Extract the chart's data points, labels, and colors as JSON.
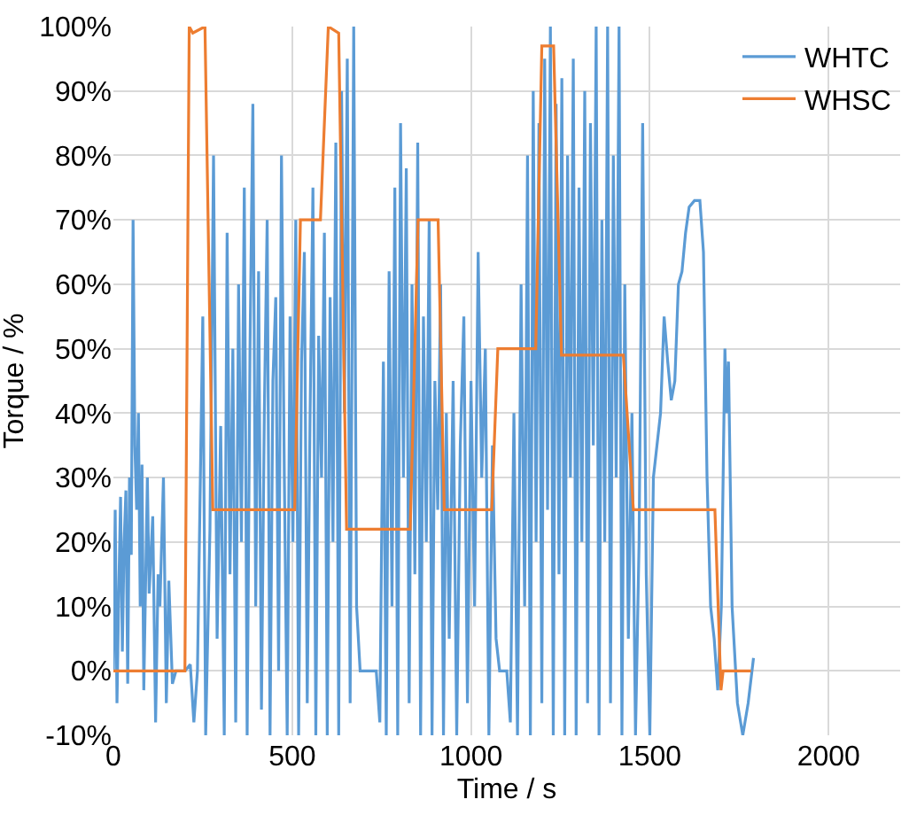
{
  "chart_data": {
    "type": "line",
    "xlabel": "Time / s",
    "ylabel": "Torque / %",
    "xlim": [
      0,
      2200
    ],
    "xticks": [
      0,
      500,
      1000,
      1500,
      2000
    ],
    "ylim": [
      -10,
      100
    ],
    "yticks": [
      {
        "value": -10,
        "label": "-10%"
      },
      {
        "value": 0,
        "label": "0%"
      },
      {
        "value": 10,
        "label": "10%"
      },
      {
        "value": 20,
        "label": "20%"
      },
      {
        "value": 30,
        "label": "30%"
      },
      {
        "value": 40,
        "label": "40%"
      },
      {
        "value": 50,
        "label": "50%"
      },
      {
        "value": 60,
        "label": "60%"
      },
      {
        "value": 70,
        "label": "70%"
      },
      {
        "value": 80,
        "label": "80%"
      },
      {
        "value": 90,
        "label": "90%"
      },
      {
        "value": 100,
        "label": "100%"
      }
    ],
    "grid": true,
    "legend": "top right",
    "marker": "none",
    "line_style": "solid",
    "series": [
      {
        "name": "WHTC",
        "color": "#5b9bd5",
        "x": [
          0,
          5,
          10,
          15,
          20,
          25,
          30,
          35,
          40,
          45,
          50,
          55,
          60,
          65,
          70,
          75,
          80,
          85,
          95,
          100,
          110,
          118,
          125,
          130,
          140,
          148,
          155,
          165,
          175,
          200,
          215,
          225,
          235,
          250,
          258,
          270,
          280,
          290,
          300,
          310,
          318,
          326,
          334,
          342,
          350,
          358,
          366,
          374,
          382,
          390,
          398,
          406,
          414,
          422,
          430,
          438,
          446,
          454,
          462,
          470,
          478,
          486,
          494,
          502,
          510,
          518,
          526,
          534,
          542,
          550,
          558,
          566,
          574,
          582,
          590,
          598,
          606,
          614,
          622,
          630,
          638,
          646,
          654,
          662,
          672,
          680,
          690,
          720,
          735,
          745,
          755,
          763,
          771,
          779,
          787,
          795,
          803,
          811,
          819,
          827,
          835,
          843,
          851,
          859,
          867,
          875,
          883,
          891,
          899,
          907,
          915,
          923,
          931,
          939,
          950,
          960,
          970,
          980,
          990,
          1000,
          1010,
          1020,
          1030,
          1040,
          1050,
          1060,
          1070,
          1080,
          1100,
          1110,
          1120,
          1130,
          1140,
          1150,
          1158,
          1166,
          1174,
          1182,
          1190,
          1198,
          1206,
          1214,
          1222,
          1230,
          1238,
          1246,
          1254,
          1262,
          1270,
          1278,
          1286,
          1294,
          1302,
          1310,
          1318,
          1326,
          1334,
          1342,
          1350,
          1358,
          1366,
          1374,
          1382,
          1390,
          1398,
          1406,
          1414,
          1422,
          1430,
          1440,
          1450,
          1460,
          1470,
          1480,
          1490,
          1500,
          1510,
          1520,
          1530,
          1540,
          1550,
          1560,
          1570,
          1580,
          1590,
          1600,
          1610,
          1625,
          1640,
          1650,
          1660,
          1670,
          1680,
          1690,
          1700,
          1710,
          1715,
          1720,
          1730,
          1745,
          1760,
          1775,
          1790
        ],
        "values": [
          0,
          25,
          -5,
          12,
          27,
          3,
          20,
          28,
          -2,
          30,
          18,
          70,
          35,
          25,
          40,
          10,
          32,
          -3,
          30,
          12,
          24,
          -8,
          15,
          10,
          30,
          -5,
          14,
          -2,
          0,
          0,
          1,
          -8,
          0,
          55,
          -10,
          22,
          80,
          5,
          38,
          -10,
          68,
          15,
          50,
          -8,
          60,
          20,
          75,
          -10,
          50,
          88,
          10,
          62,
          -6,
          40,
          70,
          -10,
          45,
          58,
          0,
          80,
          30,
          -10,
          55,
          20,
          70,
          -10,
          48,
          65,
          -5,
          40,
          75,
          -10,
          52,
          30,
          68,
          -10,
          58,
          20,
          82,
          -10,
          90,
          40,
          95,
          -5,
          100,
          10,
          0,
          0,
          0,
          -8,
          48,
          -10,
          62,
          10,
          75,
          -10,
          85,
          30,
          78,
          -5,
          60,
          15,
          82,
          -10,
          55,
          20,
          70,
          -10,
          45,
          25,
          60,
          -10,
          40,
          5,
          45,
          -10,
          35,
          55,
          -5,
          45,
          10,
          65,
          30,
          50,
          -10,
          35,
          5,
          0,
          0,
          -8,
          40,
          -10,
          60,
          10,
          80,
          -10,
          90,
          20,
          85,
          -5,
          95,
          25,
          100,
          -10,
          88,
          15,
          92,
          -10,
          80,
          30,
          95,
          -10,
          75,
          20,
          90,
          -5,
          85,
          35,
          100,
          -10,
          70,
          20,
          100,
          -5,
          80,
          30,
          100,
          -10,
          60,
          5,
          40,
          -10,
          20,
          85,
          15,
          -10,
          30,
          35,
          40,
          55,
          48,
          42,
          45,
          60,
          62,
          68,
          72,
          73,
          73,
          65,
          30,
          10,
          5,
          -3,
          10,
          50,
          40,
          48,
          10,
          -5,
          -10,
          -5,
          2
        ]
      },
      {
        "name": "WHSC",
        "color": "#ed7d31",
        "x": [
          0,
          200,
          212,
          222,
          256,
          278,
          507,
          523,
          579,
          601,
          630,
          652,
          830,
          852,
          908,
          925,
          1058,
          1075,
          1181,
          1198,
          1231,
          1253,
          1426,
          1454,
          1682,
          1699,
          1705,
          1783
        ],
        "values": [
          0,
          0,
          100,
          99,
          100,
          25,
          25,
          70,
          70,
          100,
          99,
          22,
          22,
          70,
          70,
          25,
          25,
          50,
          50,
          97,
          97,
          49,
          49,
          25,
          25,
          -3,
          0,
          0
        ]
      }
    ]
  }
}
